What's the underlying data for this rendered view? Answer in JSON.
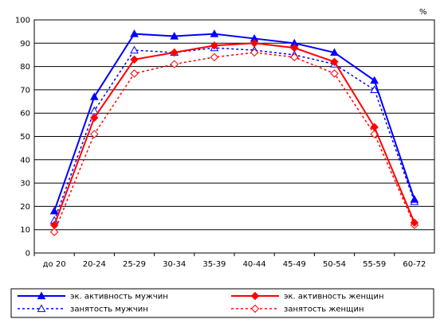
{
  "chart_data": {
    "type": "line",
    "unit_label": "%",
    "categories": [
      "до 20",
      "20-24",
      "25-29",
      "30-34",
      "35-39",
      "40-44",
      "45-49",
      "50-54",
      "55-59",
      "60-72"
    ],
    "ylim": [
      0,
      100
    ],
    "yticks": [
      0,
      10,
      20,
      30,
      40,
      50,
      60,
      70,
      80,
      90,
      100
    ],
    "grid": true,
    "legend_position": "bottom",
    "series": [
      {
        "name": "эк. активность мужчин",
        "color": "#0000ff",
        "style": "solid",
        "marker": "triangle",
        "values": [
          18,
          67,
          94,
          93,
          94,
          92,
          90,
          86,
          74,
          23
        ]
      },
      {
        "name": "эк. активность женщин",
        "color": "#ff0000",
        "style": "solid",
        "marker": "diamond",
        "values": [
          12,
          58,
          83,
          86,
          89,
          90,
          88,
          82,
          54,
          13
        ]
      },
      {
        "name": "занятость мужчин",
        "color": "#0000ff",
        "style": "dashed",
        "marker": "triangle-open",
        "values": [
          14,
          61,
          87,
          86,
          88,
          87,
          85,
          81,
          70,
          22
        ]
      },
      {
        "name": "занятость женщин",
        "color": "#ff0000",
        "style": "dashed",
        "marker": "diamond-open",
        "values": [
          9,
          51,
          77,
          81,
          84,
          86,
          84,
          77,
          51,
          12
        ]
      }
    ]
  }
}
